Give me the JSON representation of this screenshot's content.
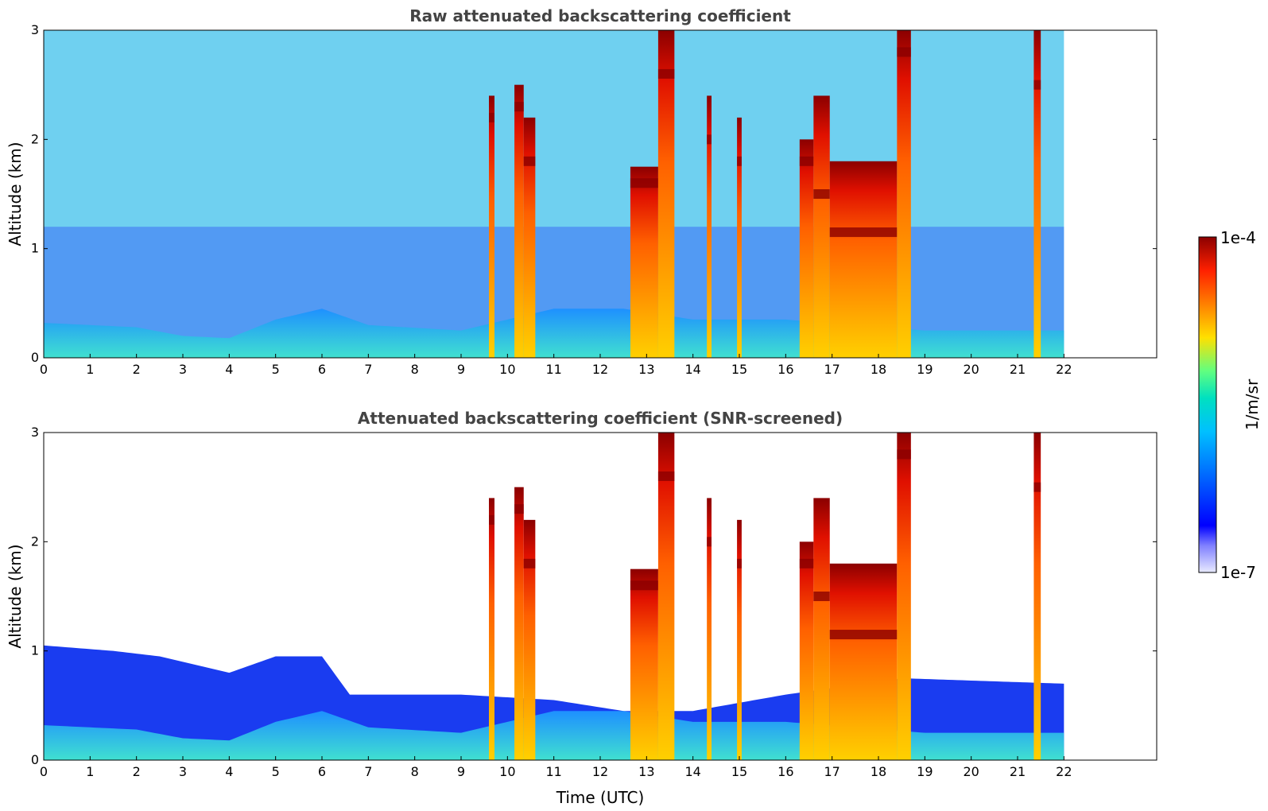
{
  "chart_data": [
    {
      "type": "heatmap",
      "title": "Raw attenuated backscattering coefficient",
      "xlabel": "",
      "ylabel": "Altitude (km)",
      "xlim": [
        0,
        24
      ],
      "ylim": [
        0,
        3
      ],
      "x_ticks": [
        "0",
        "1",
        "2",
        "3",
        "4",
        "5",
        "6",
        "7",
        "8",
        "9",
        "10",
        "11",
        "12",
        "13",
        "14",
        "15",
        "16",
        "17",
        "18",
        "19",
        "20",
        "21",
        "22"
      ],
      "y_ticks": [
        "0",
        "1",
        "2",
        "3"
      ],
      "data_x_range": [
        0,
        22
      ],
      "boundary_layer_top_km": [
        {
          "x": 0,
          "y": 0.32
        },
        {
          "x": 2,
          "y": 0.28
        },
        {
          "x": 3,
          "y": 0.2
        },
        {
          "x": 4,
          "y": 0.18
        },
        {
          "x": 5,
          "y": 0.35
        },
        {
          "x": 6,
          "y": 0.45
        },
        {
          "x": 7,
          "y": 0.3
        },
        {
          "x": 9,
          "y": 0.25
        },
        {
          "x": 11,
          "y": 0.45
        },
        {
          "x": 12.5,
          "y": 0.45
        },
        {
          "x": 14,
          "y": 0.35
        },
        {
          "x": 16,
          "y": 0.35
        },
        {
          "x": 19,
          "y": 0.25
        },
        {
          "x": 22,
          "y": 0.25
        }
      ],
      "cloud_columns": [
        {
          "x0": 9.6,
          "x1": 9.72,
          "top": 2.4,
          "peak_alt": 2.2
        },
        {
          "x0": 10.15,
          "x1": 10.35,
          "top": 2.5,
          "peak_alt": 2.3
        },
        {
          "x0": 10.35,
          "x1": 10.6,
          "top": 2.2,
          "peak_alt": 1.8
        },
        {
          "x0": 12.65,
          "x1": 13.25,
          "top": 1.75,
          "peak_alt": 1.6
        },
        {
          "x0": 13.25,
          "x1": 13.6,
          "top": 3.0,
          "peak_alt": 2.6
        },
        {
          "x0": 14.3,
          "x1": 14.4,
          "top": 2.4,
          "peak_alt": 2.0
        },
        {
          "x0": 14.95,
          "x1": 15.05,
          "top": 2.2,
          "peak_alt": 1.8
        },
        {
          "x0": 16.3,
          "x1": 16.6,
          "top": 2.0,
          "peak_alt": 1.8
        },
        {
          "x0": 16.6,
          "x1": 16.95,
          "top": 2.4,
          "peak_alt": 1.5
        },
        {
          "x0": 16.95,
          "x1": 18.4,
          "top": 1.8,
          "peak_alt": 1.15
        },
        {
          "x0": 18.4,
          "x1": 18.7,
          "top": 3.0,
          "peak_alt": 2.8
        },
        {
          "x0": 21.35,
          "x1": 21.5,
          "top": 3.0,
          "peak_alt": 2.5
        }
      ]
    },
    {
      "type": "heatmap",
      "title": "Attenuated backscattering coefficient (SNR-screened)",
      "xlabel": "Time (UTC)",
      "ylabel": "Altitude (km)",
      "xlim": [
        0,
        24
      ],
      "ylim": [
        0,
        3
      ],
      "x_ticks": [
        "0",
        "1",
        "2",
        "3",
        "4",
        "5",
        "6",
        "7",
        "8",
        "9",
        "10",
        "11",
        "12",
        "13",
        "14",
        "15",
        "16",
        "17",
        "18",
        "19",
        "20",
        "21",
        "22"
      ],
      "y_ticks": [
        "0",
        "1",
        "2",
        "3"
      ],
      "data_x_range": [
        0,
        22
      ],
      "screened_top_km": [
        {
          "x": 0,
          "y": 1.05
        },
        {
          "x": 1.5,
          "y": 1.0
        },
        {
          "x": 2.5,
          "y": 0.95
        },
        {
          "x": 3,
          "y": 0.9
        },
        {
          "x": 4,
          "y": 0.8
        },
        {
          "x": 5,
          "y": 0.95
        },
        {
          "x": 6,
          "y": 0.95
        },
        {
          "x": 6.6,
          "y": 0.6
        },
        {
          "x": 8,
          "y": 0.6
        },
        {
          "x": 9,
          "y": 0.6
        },
        {
          "x": 11,
          "y": 0.55
        },
        {
          "x": 12.5,
          "y": 0.45
        },
        {
          "x": 14,
          "y": 0.45
        },
        {
          "x": 16,
          "y": 0.6
        },
        {
          "x": 18.5,
          "y": 0.75
        },
        {
          "x": 22,
          "y": 0.7
        }
      ]
    }
  ],
  "colorbar": {
    "label": "1/m/sr",
    "max_label": "1e-4",
    "min_label": "1e-7",
    "scale": "log",
    "colormap": [
      "#ffffff",
      "#0000ff",
      "#00aaff",
      "#00e0c0",
      "#80ff60",
      "#ffe000",
      "#ff8000",
      "#ff2000",
      "#8b0000"
    ]
  }
}
